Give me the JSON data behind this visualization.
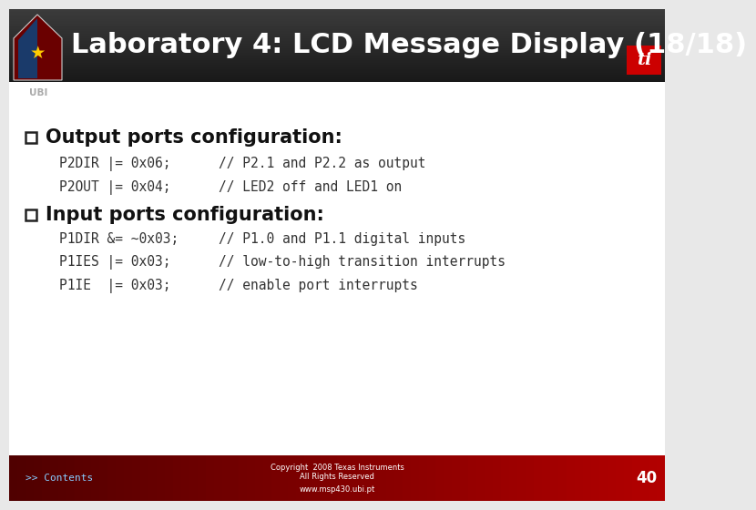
{
  "title": "Laboratory 4: LCD Message Display (18/18)",
  "title_color": "#ffffff",
  "title_fontsize": 22,
  "body_bg": "#e8e8e8",
  "footer_bg": "#cc0000",
  "footer_text1": "Copyright  2008 Texas Instruments",
  "footer_text2": "All Rights Reserved",
  "footer_text3": "www.msp430.ubi.pt",
  "footer_page": "40",
  "footer_color": "#ffffff",
  "ubi_text": "UBI",
  "ubi_color": "#aaaaaa",
  "section1_header": "Output ports configuration:",
  "section1_lines": [
    "P2DIR |= 0x06;      // P2.1 and P2.2 as output",
    "P2OUT |= 0x04;      // LED2 off and LED1 on"
  ],
  "section2_header": "Input ports configuration:",
  "section2_lines": [
    "P1DIR &= ~0x03;     // P1.0 and P1.1 digital inputs",
    "P1IES |= 0x03;      // low-to-high transition interrupts",
    "P1IE  |= 0x03;      // enable port interrupts"
  ],
  "header_fontsize": 15,
  "code_fontsize": 10.5,
  "contents_link": ">> Contents",
  "contents_color": "#88ccff"
}
